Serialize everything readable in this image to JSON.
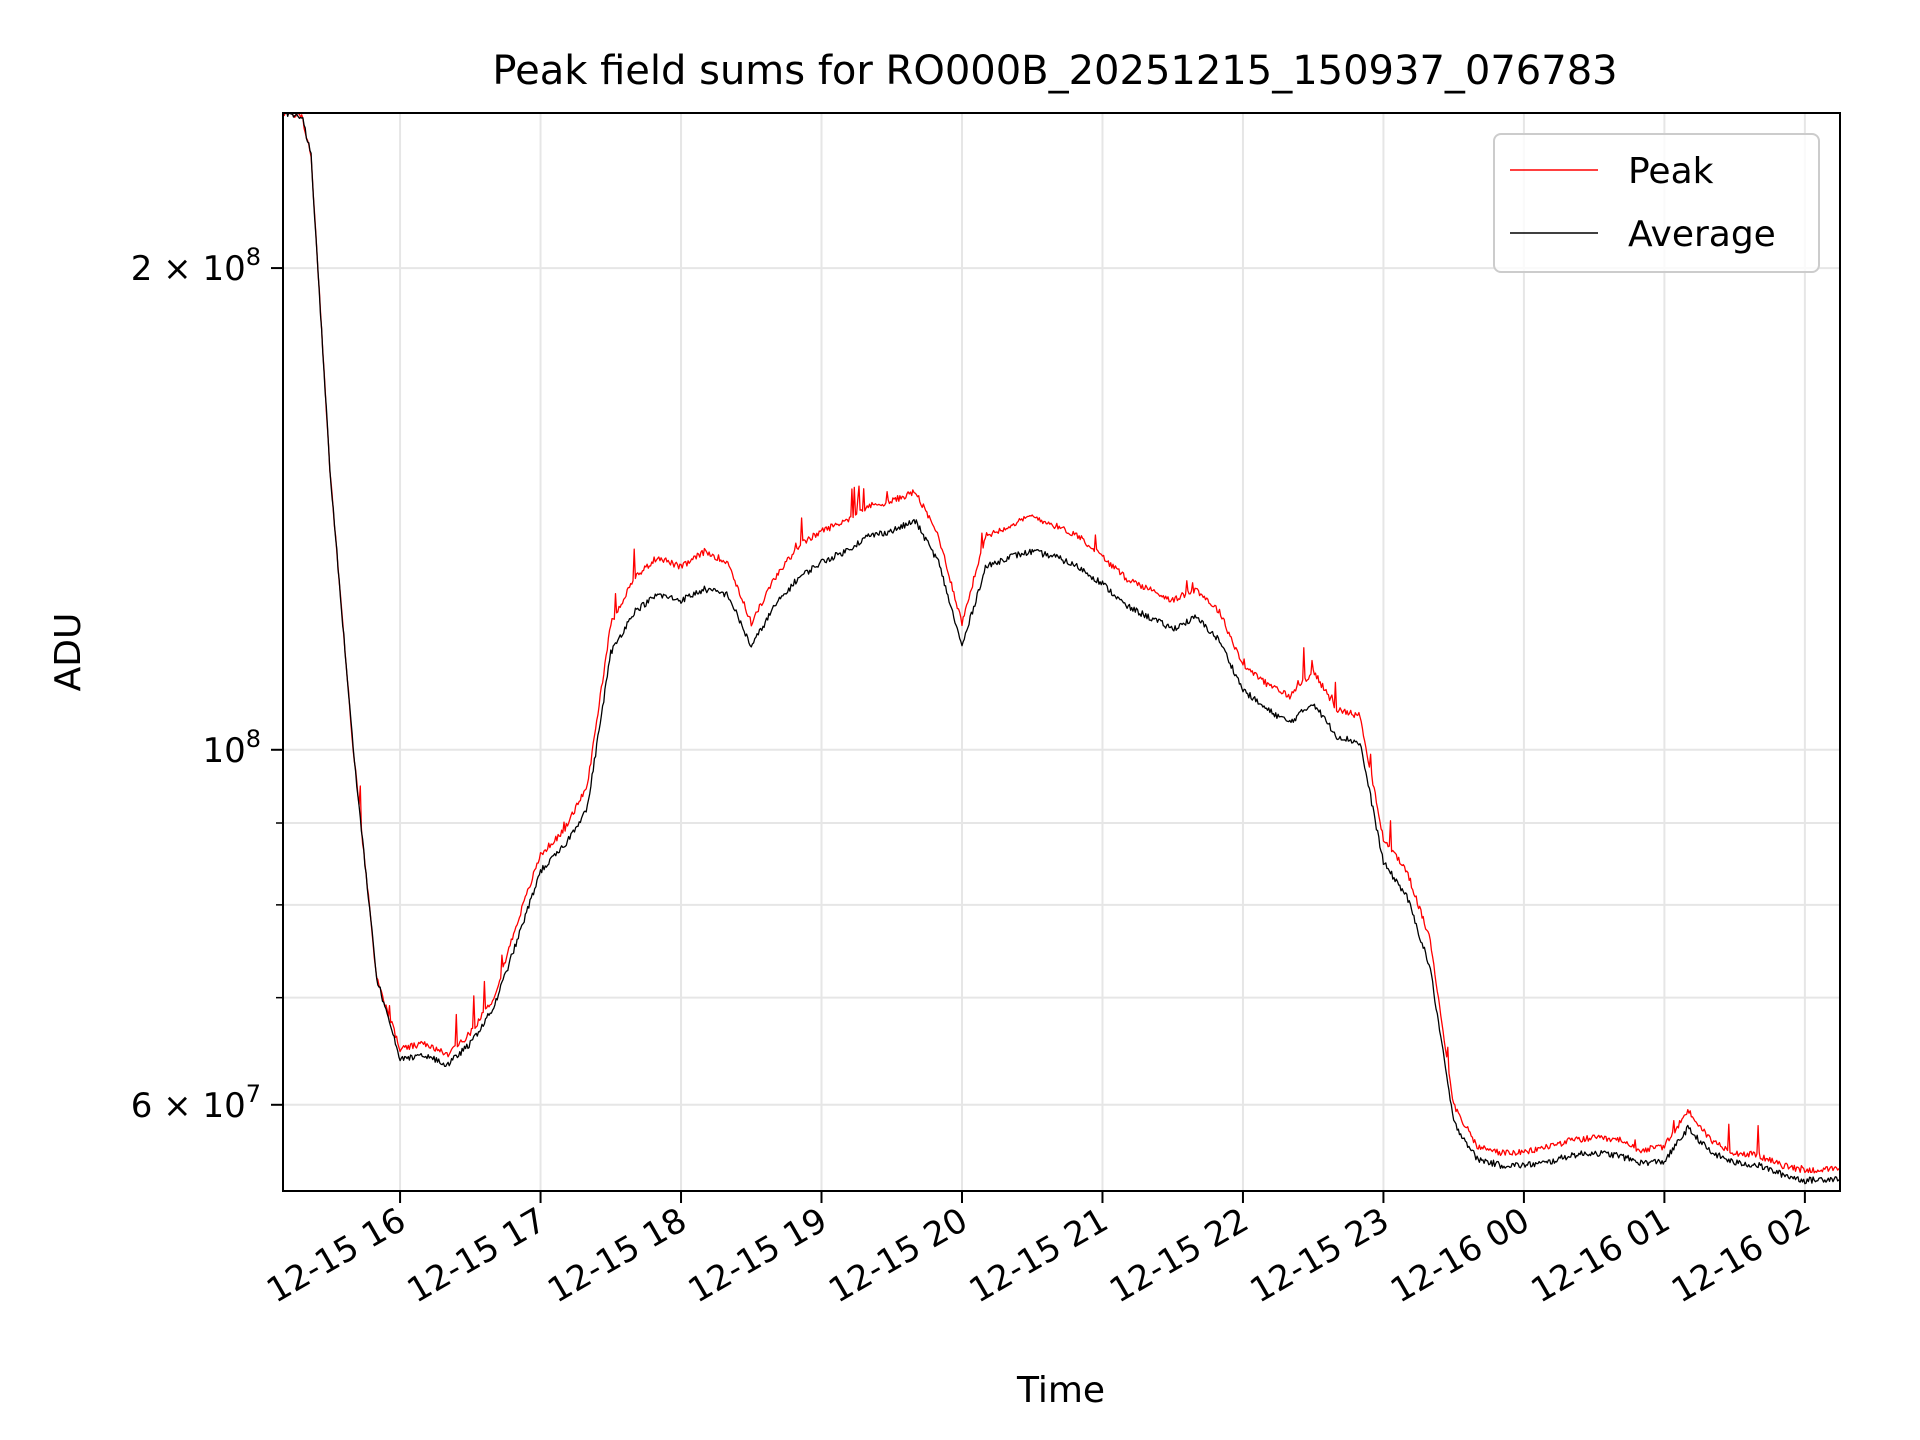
{
  "chart_data": {
    "type": "line",
    "title": "Peak field sums for RO000B_20251215_150937_076783",
    "xlabel": "Time",
    "ylabel": "ADU",
    "yscale": "log",
    "ylim": [
      53000000,
      250000000
    ],
    "xlim": [
      "12-15 15:10",
      "12-16 02:15"
    ],
    "grid": true,
    "legend_position": "top-right",
    "x_ticks": [
      "12-15 16",
      "12-15 17",
      "12-15 18",
      "12-15 19",
      "12-15 20",
      "12-15 21",
      "12-15 22",
      "12-15 23",
      "12-16 00",
      "12-16 01",
      "12-16 02"
    ],
    "y_ticks": [
      {
        "value": 200000000,
        "mantissa": "2",
        "exponent": "8"
      },
      {
        "value": 100000000,
        "mantissa": "",
        "exponent": "8"
      },
      {
        "value": 60000000,
        "mantissa": "6",
        "exponent": "7"
      }
    ],
    "series": [
      {
        "name": "Peak",
        "color": "#ff0000",
        "x": [
          "12-15 15:10",
          "12-15 15:18",
          "12-15 15:22",
          "12-15 15:30",
          "12-15 15:40",
          "12-15 15:50",
          "12-15 16:00",
          "12-15 16:10",
          "12-15 16:20",
          "12-15 16:30",
          "12-15 16:40",
          "12-15 16:50",
          "12-15 17:00",
          "12-15 17:10",
          "12-15 17:20",
          "12-15 17:30",
          "12-15 17:40",
          "12-15 17:50",
          "12-15 18:00",
          "12-15 18:10",
          "12-15 18:20",
          "12-15 18:30",
          "12-15 18:40",
          "12-15 18:50",
          "12-15 19:00",
          "12-15 19:10",
          "12-15 19:20",
          "12-15 19:30",
          "12-15 19:40",
          "12-15 19:50",
          "12-15 20:00",
          "12-15 20:10",
          "12-15 20:20",
          "12-15 20:30",
          "12-15 20:40",
          "12-15 20:50",
          "12-15 21:00",
          "12-15 21:10",
          "12-15 21:20",
          "12-15 21:30",
          "12-15 21:40",
          "12-15 21:50",
          "12-15 22:00",
          "12-15 22:10",
          "12-15 22:20",
          "12-15 22:30",
          "12-15 22:40",
          "12-15 22:50",
          "12-15 23:00",
          "12-15 23:10",
          "12-15 23:20",
          "12-15 23:30",
          "12-15 23:40",
          "12-15 23:50",
          "12-16 00:00",
          "12-16 00:10",
          "12-16 00:20",
          "12-16 00:30",
          "12-16 00:40",
          "12-16 00:50",
          "12-16 01:00",
          "12-16 01:10",
          "12-16 01:20",
          "12-16 01:30",
          "12-16 01:40",
          "12-16 01:50",
          "12-16 02:00",
          "12-16 02:15"
        ],
        "values": [
          250000000,
          249000000,
          235000000,
          150000000,
          100000000,
          72000000,
          65000000,
          65500000,
          64500000,
          66500000,
          70000000,
          78000000,
          86000000,
          89000000,
          95000000,
          120000000,
          128000000,
          132000000,
          130000000,
          133000000,
          131000000,
          120000000,
          128000000,
          134000000,
          137000000,
          139000000,
          142000000,
          143000000,
          145000000,
          136000000,
          120000000,
          136000000,
          138000000,
          140000000,
          138000000,
          136000000,
          132000000,
          128000000,
          126000000,
          124000000,
          126000000,
          122000000,
          113000000,
          110000000,
          108000000,
          112000000,
          106000000,
          105000000,
          88000000,
          84000000,
          76000000,
          60000000,
          56500000,
          56000000,
          56000000,
          56500000,
          57000000,
          57200000,
          57000000,
          56200000,
          56500000,
          59500000,
          57000000,
          56000000,
          55800000,
          55000000,
          54600000,
          54700000
        ]
      },
      {
        "name": "Average",
        "color": "#000000",
        "x": [
          "12-15 15:10",
          "12-15 15:18",
          "12-15 15:22",
          "12-15 15:30",
          "12-15 15:40",
          "12-15 15:50",
          "12-15 16:00",
          "12-15 16:10",
          "12-15 16:20",
          "12-15 16:30",
          "12-15 16:40",
          "12-15 16:50",
          "12-15 17:00",
          "12-15 17:10",
          "12-15 17:20",
          "12-15 17:30",
          "12-15 17:40",
          "12-15 17:50",
          "12-15 18:00",
          "12-15 18:10",
          "12-15 18:20",
          "12-15 18:30",
          "12-15 18:40",
          "12-15 18:50",
          "12-15 19:00",
          "12-15 19:10",
          "12-15 19:20",
          "12-15 19:30",
          "12-15 19:40",
          "12-15 19:50",
          "12-15 20:00",
          "12-15 20:10",
          "12-15 20:20",
          "12-15 20:30",
          "12-15 20:40",
          "12-15 20:50",
          "12-15 21:00",
          "12-15 21:10",
          "12-15 21:20",
          "12-15 21:30",
          "12-15 21:40",
          "12-15 21:50",
          "12-15 22:00",
          "12-15 22:10",
          "12-15 22:20",
          "12-15 22:30",
          "12-15 22:40",
          "12-15 22:50",
          "12-15 23:00",
          "12-15 23:10",
          "12-15 23:20",
          "12-15 23:30",
          "12-15 23:40",
          "12-15 23:50",
          "12-16 00:00",
          "12-16 00:10",
          "12-16 00:20",
          "12-16 00:30",
          "12-16 00:40",
          "12-16 00:50",
          "12-16 01:00",
          "12-16 01:10",
          "12-16 01:20",
          "12-16 01:30",
          "12-16 01:40",
          "12-16 01:50",
          "12-16 02:00",
          "12-16 02:15"
        ],
        "values": [
          250000000,
          249000000,
          235000000,
          150000000,
          100000000,
          72000000,
          64000000,
          64500000,
          63500000,
          65500000,
          69000000,
          76000000,
          84000000,
          87000000,
          92000000,
          115000000,
          122000000,
          125000000,
          124000000,
          126000000,
          125000000,
          116000000,
          123000000,
          128000000,
          131000000,
          133000000,
          136000000,
          137000000,
          139000000,
          131000000,
          116000000,
          130000000,
          132000000,
          133000000,
          132000000,
          130000000,
          127000000,
          123000000,
          121000000,
          119000000,
          121000000,
          117000000,
          109000000,
          106000000,
          104000000,
          107000000,
          102000000,
          101000000,
          85000000,
          81000000,
          73000000,
          58500000,
          55500000,
          55000000,
          55000000,
          55200000,
          55800000,
          56000000,
          55800000,
          55200000,
          55300000,
          58000000,
          56000000,
          55200000,
          55000000,
          54300000,
          53800000,
          54000000
        ]
      }
    ]
  }
}
